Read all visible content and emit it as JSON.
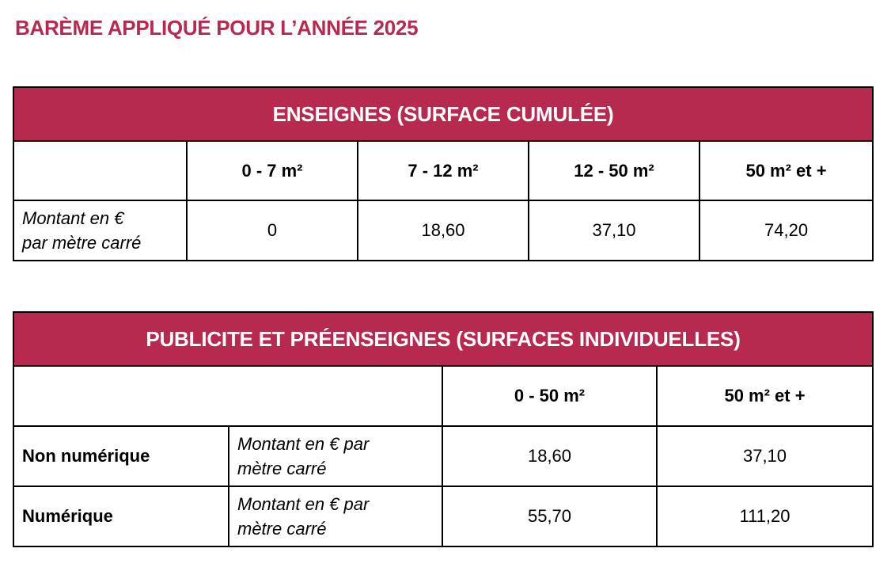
{
  "title": "BARÈME APPLIQUÉ POUR L’ANNÉE 2025",
  "enseignes": {
    "header": "ENSEIGNES (SURFACE CUMULÉE)",
    "columns": [
      "0 - 7 m²",
      "7 - 12 m²",
      "12 - 50 m²",
      "50 m² et +"
    ],
    "row_label_line1": "Montant en €",
    "row_label_line2": "par mètre carré",
    "values": [
      "0",
      "18,60",
      "37,10",
      "74,20"
    ]
  },
  "publicite": {
    "header": "PUBLICITE ET PRÉENSEIGNES (SURFACES INDIVIDUELLES)",
    "columns": [
      "0 - 50 m²",
      "50 m² et +"
    ],
    "rows": [
      {
        "label": "Non numérique",
        "unit_line1": "Montant en € par",
        "unit_line2": "mètre carré",
        "values": [
          "18,60",
          "37,10"
        ]
      },
      {
        "label": "Numérique",
        "unit_line1": "Montant en € par",
        "unit_line2": "mètre carré",
        "values": [
          "55,70",
          "111,20"
        ]
      }
    ]
  }
}
